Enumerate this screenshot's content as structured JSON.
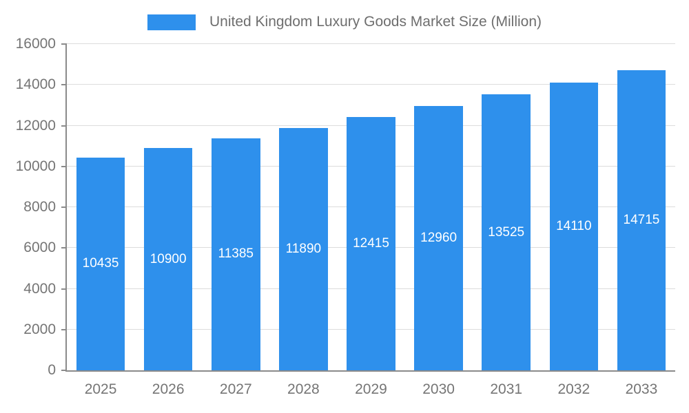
{
  "chart_data": {
    "type": "bar",
    "title": "United Kingdom Luxury Goods Market Size (Million)",
    "categories": [
      "2025",
      "2026",
      "2027",
      "2028",
      "2029",
      "2030",
      "2031",
      "2032",
      "2033"
    ],
    "values": [
      10435,
      10900,
      11385,
      11890,
      12415,
      12960,
      13525,
      14110,
      14715
    ],
    "xlabel": "",
    "ylabel": "",
    "ylim": [
      0,
      16000
    ],
    "ytick_step": 2000,
    "grid": true,
    "legend_position": "top",
    "colors": {
      "bar": "#2e90ec",
      "bar_label": "#ffffff",
      "axis_text": "#757575",
      "grid_line": "#dcdcdc",
      "axis_line": "#8a8a8a"
    }
  }
}
